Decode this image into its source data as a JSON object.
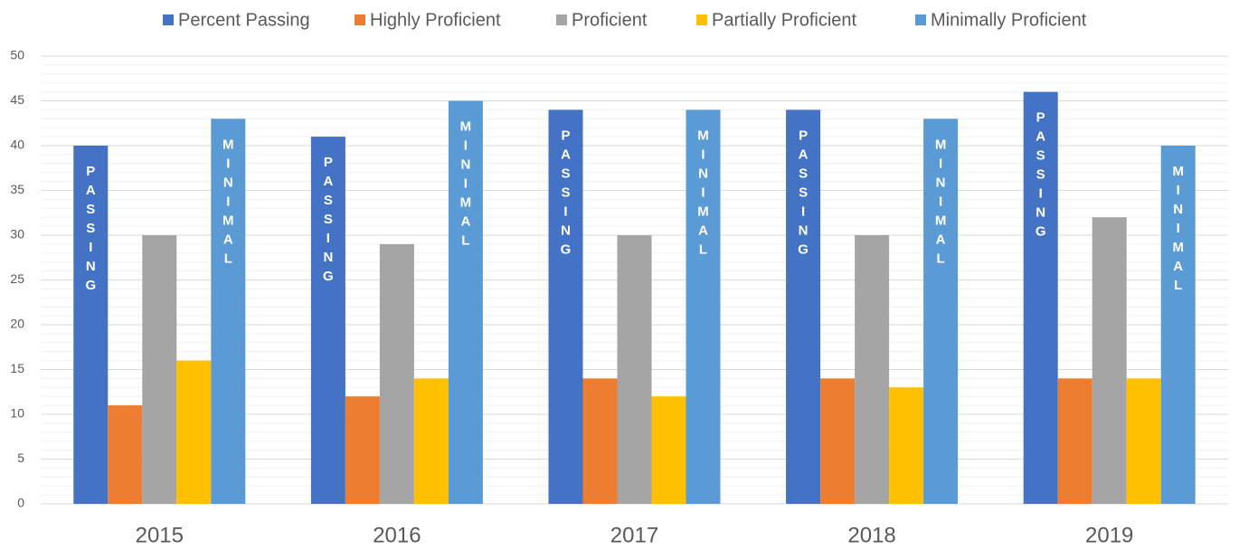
{
  "chart_data": {
    "type": "bar",
    "categories": [
      "2015",
      "2016",
      "2017",
      "2018",
      "2019"
    ],
    "series": [
      {
        "name": "Percent Passing",
        "color": "#4472c4",
        "values": [
          40,
          41,
          44,
          44,
          46
        ],
        "bar_text": "PASSING"
      },
      {
        "name": "Highly Proficient",
        "color": "#ed7d31",
        "values": [
          11,
          12,
          14,
          14,
          14
        ]
      },
      {
        "name": "Proficient",
        "color": "#a5a5a5",
        "values": [
          30,
          29,
          30,
          30,
          32
        ]
      },
      {
        "name": "Partially Proficient",
        "color": "#ffc000",
        "values": [
          16,
          14,
          12,
          13,
          14
        ]
      },
      {
        "name": "Minimally Proficient",
        "color": "#5b9bd5",
        "values": [
          43,
          45,
          44,
          43,
          40
        ],
        "bar_text": "MINIMAL"
      }
    ],
    "ylim": [
      0,
      50
    ],
    "yticks": [
      0,
      5,
      10,
      15,
      20,
      25,
      30,
      35,
      40,
      45,
      50
    ],
    "grid": true,
    "minor_grid": true,
    "legend": "top"
  }
}
